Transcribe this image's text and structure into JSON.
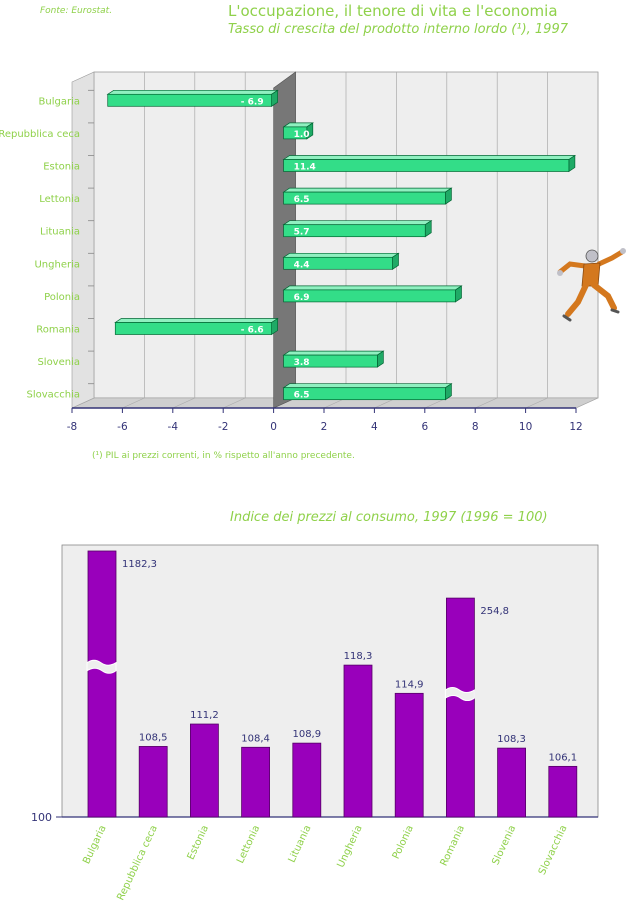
{
  "source": "Fonte: Eurostat.",
  "page_title": "L'occupazione, il tenore di vita e l'economia",
  "footnote": "(¹) PIL ai prezzi correnti, in % rispetto all'anno precedente.",
  "colors": {
    "green_bar": "#33dd88",
    "purple_bar": "#9900bb",
    "label_green": "#8fd14a",
    "axis_navy": "#333377",
    "wall_gray": "#777777",
    "plot_bg": "#eeeeee"
  },
  "figure": {
    "icon": "running-man-illustration"
  },
  "chart_data": [
    {
      "type": "bar",
      "orientation": "horizontal",
      "title": "Tasso di crescita del prodotto interno lordo (¹), 1997",
      "categories": [
        "Bulgaria",
        "Repubblica ceca",
        "Estonia",
        "Lettonia",
        "Lituania",
        "Ungheria",
        "Polonia",
        "Romania",
        "Slovenia",
        "Slovacchia"
      ],
      "values": [
        -6.9,
        1.0,
        11.4,
        6.5,
        5.7,
        4.4,
        6.9,
        -6.6,
        3.8,
        6.5
      ],
      "data_labels": [
        "- 6.9",
        "1.0",
        "11.4",
        "6.5",
        "5.7",
        "4.4",
        "6.9",
        "- 6.6",
        "3.8",
        "6.5"
      ],
      "xlim": [
        -8,
        12
      ],
      "xticks": [
        "-8",
        "-6",
        "-4",
        "-2",
        "0",
        "2",
        "4",
        "6",
        "8",
        "10",
        "12"
      ],
      "grid": true
    },
    {
      "type": "bar",
      "title": "Indice dei prezzi al consumo, 1997 (1996 = 100)",
      "categories": [
        "Bulgaria",
        "Repubblica ceca",
        "Estonia",
        "Lettonia",
        "Lituania",
        "Ungheria",
        "Polonia",
        "Romania",
        "Slovenia",
        "Slovacchia"
      ],
      "values": [
        1182.3,
        108.5,
        111.2,
        108.4,
        108.9,
        118.3,
        114.9,
        254.8,
        108.3,
        106.1
      ],
      "data_labels": [
        "1182,3",
        "108,5",
        "111,2",
        "108,4",
        "108,9",
        "118,3",
        "114,9",
        "254,8",
        "108,3",
        "106,1"
      ],
      "y_baseline": 100,
      "y_baseline_label": "100",
      "broken_bars": [
        "Bulgaria",
        "Romania"
      ],
      "grid": false
    }
  ]
}
